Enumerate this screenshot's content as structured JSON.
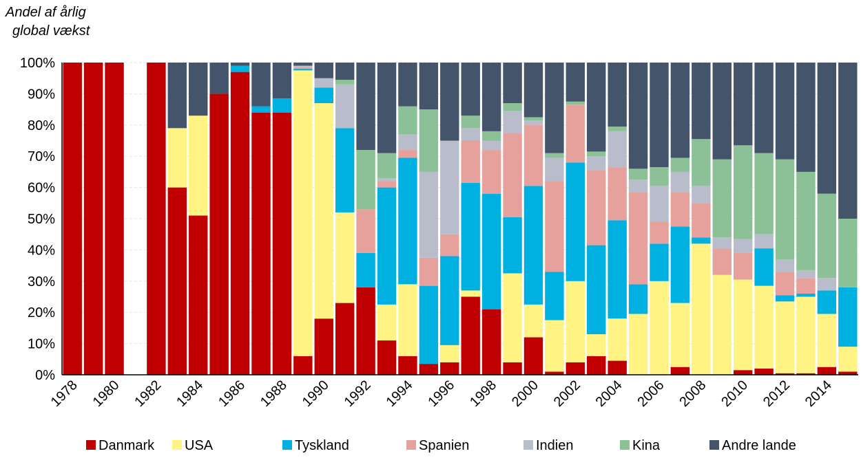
{
  "chart_data": {
    "type": "stacked_bar",
    "y_label": [
      "Andel af årlig",
      "global vækst"
    ],
    "categories": [
      "1978",
      null,
      "1980",
      null,
      "1982",
      null,
      "1984",
      null,
      "1986",
      null,
      "1988",
      null,
      "1990",
      null,
      "1992",
      null,
      "1994",
      null,
      "1996",
      null,
      "1998",
      null,
      "2000",
      null,
      "2002",
      null,
      "2004",
      null,
      "2006",
      null,
      "2008",
      null,
      "2010",
      null,
      "2012",
      null,
      "2014",
      null
    ],
    "series": [
      {
        "name": "Danmark",
        "color": "#c00000",
        "values": [
          100,
          100,
          100,
          0,
          100,
          60,
          51,
          90,
          97,
          84,
          84,
          6,
          18,
          23,
          28,
          11,
          6,
          3.5,
          4,
          25,
          21,
          4,
          12,
          1,
          4,
          6,
          4.5,
          0,
          0,
          2.5,
          0,
          0,
          1.5,
          2,
          0.5,
          0.5,
          2.5,
          1
        ]
      },
      {
        "name": "USA",
        "color": "#fff383",
        "values": [
          0,
          0,
          0,
          0,
          0,
          19,
          32,
          0,
          0,
          0,
          0,
          91.5,
          69,
          29,
          0,
          11.5,
          23,
          0,
          5.5,
          2,
          0,
          28.5,
          10.5,
          16.5,
          26,
          7,
          13.5,
          19.5,
          30,
          20.5,
          42,
          32,
          29,
          26.5,
          23,
          24.5,
          17,
          8
        ]
      },
      {
        "name": "Tyskland",
        "color": "#00b0e0",
        "values": [
          0,
          0,
          0,
          0,
          0,
          0,
          0,
          0,
          2,
          2,
          4.5,
          0.5,
          5,
          27,
          11,
          37.5,
          40.5,
          25,
          28.5,
          34.5,
          37,
          18,
          38,
          15.5,
          38,
          28.5,
          31.5,
          9.5,
          12,
          24.5,
          2,
          0,
          0,
          12,
          2,
          1,
          7.5,
          19
        ]
      },
      {
        "name": "Spanien",
        "color": "#e6a19c",
        "values": [
          0,
          0,
          0,
          0,
          0,
          0,
          0,
          0,
          0,
          0,
          0,
          0.5,
          0,
          0,
          14,
          2,
          2.5,
          9,
          7,
          13.5,
          14,
          27,
          19.5,
          29,
          18.5,
          24,
          17,
          29.5,
          7,
          11,
          11,
          8.5,
          8.5,
          0,
          7.5,
          5,
          0,
          0
        ]
      },
      {
        "name": "Indien",
        "color": "#b8bccb",
        "values": [
          0,
          0,
          0,
          0,
          0,
          0,
          0,
          0,
          0,
          0,
          0,
          0.5,
          3,
          14,
          0,
          1,
          5,
          27.5,
          30,
          4,
          3,
          7,
          1.5,
          7.5,
          0,
          4.5,
          11.5,
          4,
          11.5,
          6.5,
          5.5,
          3.5,
          4.5,
          4.5,
          4,
          2.5,
          4,
          0
        ]
      },
      {
        "name": "Kina",
        "color": "#8cc197",
        "values": [
          0,
          0,
          0,
          0,
          0,
          0,
          0,
          0,
          0,
          0,
          0,
          0,
          0,
          1.5,
          19,
          8,
          9,
          20,
          0,
          4,
          3,
          2.5,
          1,
          1.5,
          1,
          1.5,
          1.5,
          3.5,
          6,
          4.5,
          15,
          25,
          30,
          26,
          32,
          31.5,
          27,
          22
        ]
      },
      {
        "name": "Andre lande",
        "color": "#44546a",
        "values": [
          0,
          0,
          0,
          0,
          0,
          21,
          17,
          10,
          1,
          14,
          11.5,
          1,
          5,
          5.5,
          28,
          29,
          14,
          15,
          25,
          17,
          22,
          13,
          17.5,
          29,
          12.5,
          28.5,
          20.5,
          34,
          33.5,
          30.5,
          24.5,
          31,
          26.5,
          29,
          31,
          35,
          42,
          50
        ]
      }
    ],
    "ylim": [
      0,
      100
    ],
    "yticks": [
      {
        "value": 0,
        "label": "0%"
      },
      {
        "value": 10,
        "label": "10%"
      },
      {
        "value": 20,
        "label": "20%"
      },
      {
        "value": 30,
        "label": "30%"
      },
      {
        "value": 40,
        "label": "40%"
      },
      {
        "value": 50,
        "label": "50%"
      },
      {
        "value": 60,
        "label": "60%"
      },
      {
        "value": 70,
        "label": "70%"
      },
      {
        "value": 80,
        "label": "80%"
      },
      {
        "value": 90,
        "label": "90%"
      },
      {
        "value": 100,
        "label": "100%"
      }
    ],
    "grid": true,
    "legend": "bottom"
  }
}
